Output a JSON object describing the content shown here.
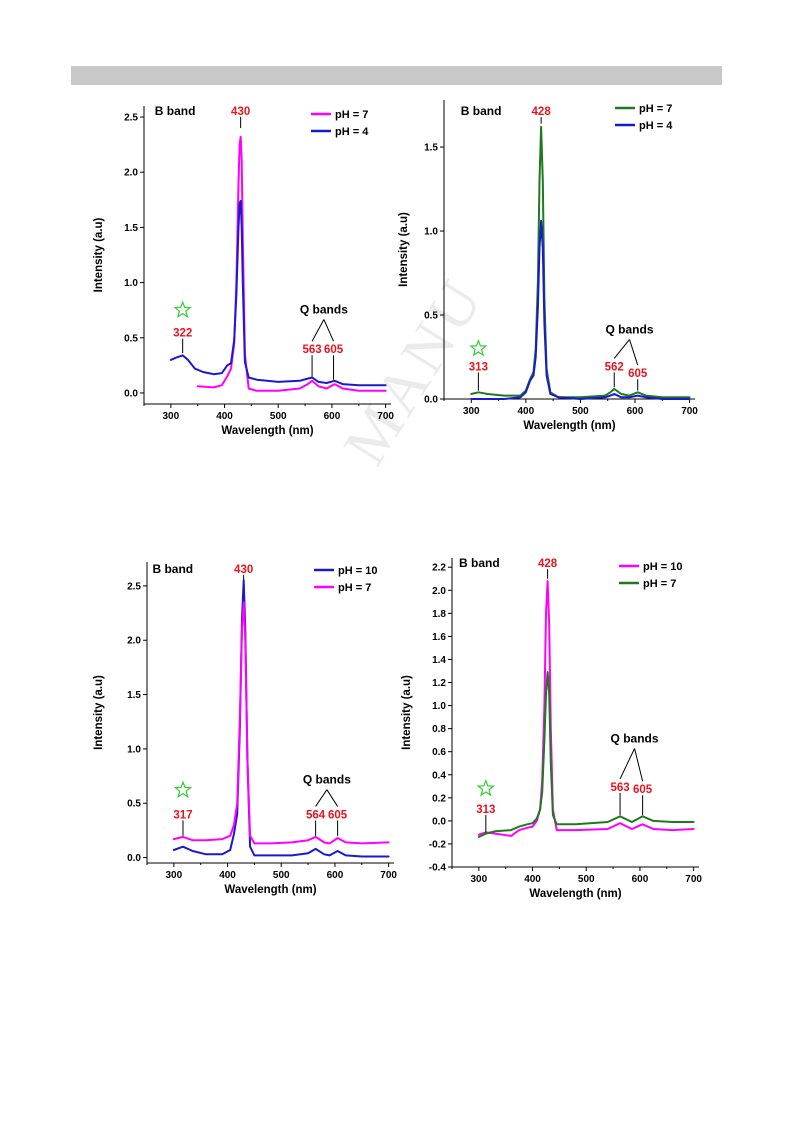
{
  "watermark": "MANU",
  "chart_data": [
    {
      "type": "line",
      "xlabel": "Wavelength (nm)",
      "ylabel": "Intensity (a.u)",
      "xlim": [
        250,
        710
      ],
      "ylim": [
        -0.1,
        2.6
      ],
      "xticks": [
        300,
        400,
        500,
        600,
        700
      ],
      "yticks": [
        0.0,
        0.5,
        1.0,
        1.5,
        2.0,
        2.5
      ],
      "ytick_labels": [
        "0.0",
        "0.5",
        "1.0",
        "1.5",
        "2.0",
        "2.5"
      ],
      "legend_position": "top-right",
      "series": [
        {
          "name": "pH = 7",
          "color": "#ff00ff",
          "x": [
            350,
            380,
            395,
            405,
            412,
            418,
            422,
            426,
            428,
            430,
            432,
            434,
            438,
            445,
            460,
            500,
            540,
            555,
            563,
            575,
            590,
            605,
            620,
            650,
            700
          ],
          "y": [
            0.06,
            0.05,
            0.07,
            0.15,
            0.22,
            0.45,
            1.0,
            1.9,
            2.25,
            2.32,
            2.1,
            1.4,
            0.35,
            0.04,
            0.02,
            0.02,
            0.04,
            0.08,
            0.11,
            0.06,
            0.04,
            0.08,
            0.04,
            0.02,
            0.02
          ]
        },
        {
          "name": "pH = 4",
          "color": "#1a1acc",
          "x": [
            300,
            310,
            322,
            332,
            345,
            360,
            380,
            395,
            405,
            412,
            418,
            422,
            426,
            428,
            430,
            432,
            434,
            438,
            445,
            460,
            500,
            540,
            555,
            563,
            575,
            590,
            605,
            620,
            650,
            700
          ],
          "y": [
            0.3,
            0.32,
            0.34,
            0.3,
            0.22,
            0.19,
            0.17,
            0.18,
            0.25,
            0.27,
            0.48,
            0.9,
            1.5,
            1.72,
            1.74,
            1.5,
            1.0,
            0.28,
            0.14,
            0.12,
            0.1,
            0.11,
            0.13,
            0.14,
            0.1,
            0.09,
            0.11,
            0.08,
            0.07,
            0.07
          ]
        }
      ],
      "annotations": [
        {
          "text": "B band",
          "x": 308,
          "y": 2.52,
          "color": "#000000"
        },
        {
          "text": "430",
          "x": 430,
          "y": 2.52,
          "color": "#e8141e",
          "leader_to": 2.4
        },
        {
          "text": "Q bands",
          "x": 585,
          "y": 0.72,
          "color": "#000000"
        },
        {
          "text": "563",
          "x": 563,
          "y": 0.36,
          "color": "#e8141e",
          "leader_to": 0.15
        },
        {
          "text": "605",
          "x": 603,
          "y": 0.36,
          "color": "#e8141e",
          "leader_to": 0.12
        },
        {
          "text": "322",
          "x": 322,
          "y": 0.51,
          "color": "#e8141e",
          "leader_to": 0.36
        }
      ],
      "star": {
        "x": 322,
        "y": 0.75
      }
    },
    {
      "type": "line",
      "xlabel": "Wavelength (nm)",
      "ylabel": "Intensity (a.u)",
      "xlim": [
        250,
        710
      ],
      "ylim": [
        0.0,
        1.78
      ],
      "xticks": [
        300,
        400,
        500,
        600,
        700
      ],
      "yticks": [
        0.0,
        0.5,
        1.0,
        1.5
      ],
      "ytick_labels": [
        "0.0",
        "0.5",
        "1.0",
        "1.5"
      ],
      "legend_position": "top-right",
      "series": [
        {
          "name": "pH = 7",
          "color": "#1f7a1f",
          "x": [
            300,
            313,
            330,
            360,
            390,
            400,
            408,
            414,
            418,
            422,
            425,
            428,
            431,
            434,
            438,
            445,
            460,
            500,
            545,
            555,
            562,
            575,
            590,
            605,
            620,
            650,
            700
          ],
          "y": [
            0.03,
            0.04,
            0.03,
            0.02,
            0.02,
            0.05,
            0.12,
            0.16,
            0.3,
            0.7,
            1.3,
            1.62,
            1.3,
            0.6,
            0.18,
            0.04,
            0.01,
            0.01,
            0.02,
            0.04,
            0.06,
            0.03,
            0.02,
            0.04,
            0.02,
            0.01,
            0.01
          ]
        },
        {
          "name": "pH = 4",
          "color": "#1a1acc",
          "x": [
            300,
            330,
            360,
            390,
            400,
            408,
            414,
            418,
            422,
            425,
            428,
            431,
            434,
            438,
            445,
            460,
            500,
            545,
            555,
            562,
            575,
            590,
            605,
            620,
            650,
            700
          ],
          "y": [
            0.0,
            0.0,
            0.0,
            0.01,
            0.04,
            0.11,
            0.14,
            0.25,
            0.55,
            0.9,
            1.06,
            0.9,
            0.45,
            0.14,
            0.03,
            0.01,
            0.0,
            0.01,
            0.02,
            0.03,
            0.01,
            0.01,
            0.02,
            0.01,
            0.0,
            0.0
          ]
        }
      ],
      "annotations": [
        {
          "text": "B band",
          "x": 318,
          "y": 1.69,
          "color": "#000000"
        },
        {
          "text": "428",
          "x": 428,
          "y": 1.69,
          "color": "#e8141e",
          "leader_to": 1.64
        },
        {
          "text": "Q bands",
          "x": 590,
          "y": 0.39,
          "color": "#000000"
        },
        {
          "text": "562",
          "x": 562,
          "y": 0.17,
          "color": "#e8141e",
          "leader_to": 0.07
        },
        {
          "text": "605",
          "x": 605,
          "y": 0.13,
          "color": "#e8141e",
          "leader_to": 0.05
        },
        {
          "text": "313",
          "x": 313,
          "y": 0.17,
          "color": "#e8141e",
          "leader_to": 0.05
        }
      ],
      "star": {
        "x": 313,
        "y": 0.3
      }
    },
    {
      "type": "line",
      "xlabel": "Wavelength (nm)",
      "ylabel": "Intensity (a.u)",
      "xlim": [
        250,
        710
      ],
      "ylim": [
        -0.05,
        2.72
      ],
      "xticks": [
        300,
        400,
        500,
        600,
        700
      ],
      "yticks": [
        0.0,
        0.5,
        1.0,
        1.5,
        2.0,
        2.5
      ],
      "ytick_labels": [
        "0.0",
        "0.5",
        "1.0",
        "1.5",
        "2.0",
        "2.5"
      ],
      "legend_position": "top-right",
      "series": [
        {
          "name": "pH = 10",
          "color": "#1a1acc",
          "x": [
            300,
            317,
            335,
            360,
            390,
            405,
            412,
            418,
            423,
            427,
            430,
            433,
            437,
            442,
            450,
            480,
            520,
            550,
            564,
            580,
            590,
            605,
            620,
            650,
            700
          ],
          "y": [
            0.07,
            0.1,
            0.06,
            0.03,
            0.03,
            0.07,
            0.22,
            0.4,
            1.2,
            2.2,
            2.55,
            2.1,
            0.9,
            0.1,
            0.02,
            0.02,
            0.02,
            0.04,
            0.08,
            0.03,
            0.02,
            0.06,
            0.02,
            0.01,
            0.01
          ]
        },
        {
          "name": "pH = 7",
          "color": "#ff00ff",
          "x": [
            300,
            317,
            335,
            360,
            390,
            405,
            412,
            418,
            423,
            427,
            430,
            433,
            437,
            442,
            450,
            480,
            520,
            550,
            564,
            580,
            590,
            605,
            620,
            650,
            700
          ],
          "y": [
            0.17,
            0.19,
            0.16,
            0.16,
            0.17,
            0.2,
            0.3,
            0.5,
            1.3,
            2.1,
            2.35,
            2.0,
            0.9,
            0.2,
            0.13,
            0.13,
            0.14,
            0.16,
            0.19,
            0.14,
            0.13,
            0.18,
            0.14,
            0.13,
            0.14
          ]
        }
      ],
      "annotations": [
        {
          "text": "B band",
          "x": 298,
          "y": 2.62,
          "color": "#000000"
        },
        {
          "text": "430",
          "x": 430,
          "y": 2.62,
          "color": "#e8141e",
          "leader_to": 2.55
        },
        {
          "text": "Q bands",
          "x": 585,
          "y": 0.68,
          "color": "#000000"
        },
        {
          "text": "564",
          "x": 564,
          "y": 0.36,
          "color": "#e8141e",
          "leader_to": 0.2
        },
        {
          "text": "605",
          "x": 605,
          "y": 0.36,
          "color": "#e8141e",
          "leader_to": 0.2
        },
        {
          "text": "317",
          "x": 317,
          "y": 0.36,
          "color": "#e8141e",
          "leader_to": 0.2
        }
      ],
      "star": {
        "x": 317,
        "y": 0.62
      }
    },
    {
      "type": "line",
      "xlabel": "Wavelength (nm)",
      "ylabel": "Intensity (a.u)",
      "xlim": [
        250,
        710
      ],
      "ylim": [
        -0.4,
        2.28
      ],
      "xticks": [
        300,
        400,
        500,
        600,
        700
      ],
      "yticks": [
        -0.4,
        -0.2,
        0.0,
        0.2,
        0.4,
        0.6,
        0.8,
        1.0,
        1.2,
        1.4,
        1.6,
        1.8,
        2.0,
        2.2
      ],
      "ytick_labels": [
        "-0.4",
        "-0.2",
        "0.0",
        "0.2",
        "0.4",
        "0.6",
        "0.8",
        "1.0",
        "1.2",
        "1.4",
        "1.6",
        "1.8",
        "2.0",
        "2.2"
      ],
      "legend_position": "top-right",
      "series": [
        {
          "name": "pH = 10",
          "color": "#ff00ff",
          "x": [
            300,
            313,
            330,
            360,
            375,
            390,
            400,
            408,
            414,
            418,
            422,
            425,
            428,
            431,
            434,
            438,
            445,
            480,
            540,
            563,
            585,
            605,
            625,
            660,
            700
          ],
          "y": [
            -0.12,
            -0.1,
            -0.11,
            -0.13,
            -0.08,
            -0.06,
            -0.05,
            0.0,
            0.1,
            0.35,
            1.0,
            1.8,
            2.08,
            1.7,
            0.8,
            0.1,
            -0.08,
            -0.08,
            -0.07,
            -0.02,
            -0.07,
            -0.03,
            -0.07,
            -0.08,
            -0.07
          ]
        },
        {
          "name": "pH = 7",
          "color": "#1f7a1f",
          "x": [
            300,
            313,
            330,
            360,
            375,
            390,
            400,
            408,
            414,
            418,
            422,
            425,
            428,
            431,
            434,
            438,
            445,
            480,
            540,
            563,
            585,
            605,
            625,
            660,
            700
          ],
          "y": [
            -0.14,
            -0.11,
            -0.09,
            -0.08,
            -0.05,
            -0.03,
            -0.02,
            0.02,
            0.1,
            0.25,
            0.7,
            1.1,
            1.29,
            1.1,
            0.5,
            0.05,
            -0.03,
            -0.03,
            -0.01,
            0.04,
            -0.01,
            0.04,
            0.0,
            -0.01,
            -0.01
          ]
        }
      ],
      "annotations": [
        {
          "text": "B band",
          "x": 301,
          "y": 2.2,
          "color": "#000000"
        },
        {
          "text": "428",
          "x": 428,
          "y": 2.2,
          "color": "#e8141e",
          "leader_to": 2.1
        },
        {
          "text": "Q bands",
          "x": 590,
          "y": 0.68,
          "color": "#000000"
        },
        {
          "text": "563",
          "x": 563,
          "y": 0.26,
          "color": "#e8141e",
          "leader_to": 0.05
        },
        {
          "text": "605",
          "x": 605,
          "y": 0.24,
          "color": "#e8141e",
          "leader_to": 0.05
        },
        {
          "text": "313",
          "x": 313,
          "y": 0.07,
          "color": "#e8141e",
          "leader_to": -0.1
        }
      ],
      "star": {
        "x": 313,
        "y": 0.28
      }
    }
  ]
}
